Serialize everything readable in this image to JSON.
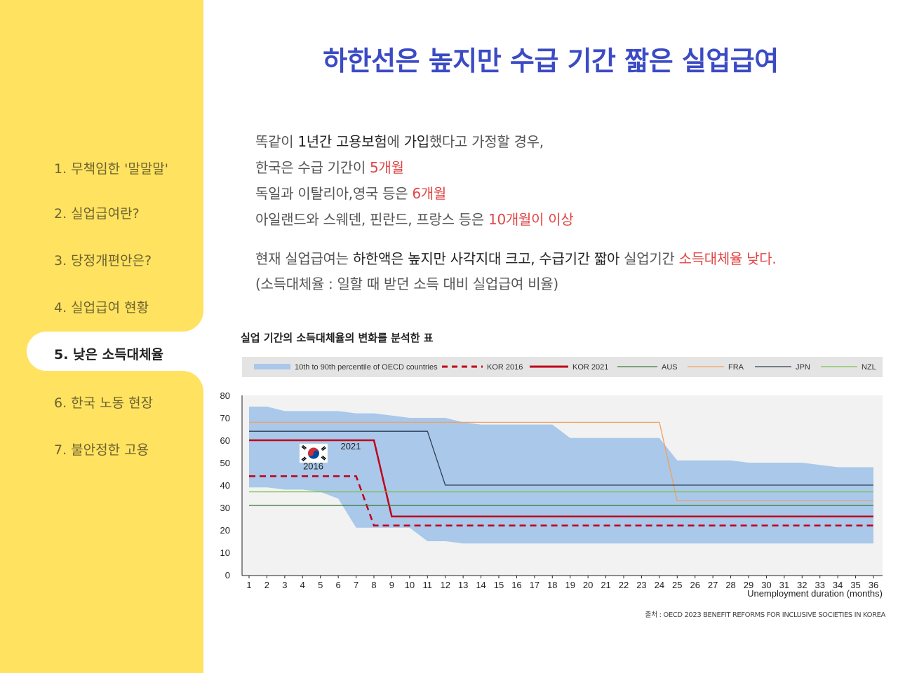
{
  "sidebar": {
    "items": [
      {
        "label": "1. 무책임한 '말말말'"
      },
      {
        "label": "2. 실업급여란?"
      },
      {
        "label": "3. 당정개편안은?"
      },
      {
        "label": "4. 실업급여 현황"
      },
      {
        "label": "5. 낮은 소득대체율"
      },
      {
        "label": "6. 한국 노동 현장"
      },
      {
        "label": "7. 불안정한 고용"
      }
    ],
    "active_index": 4
  },
  "page": {
    "title": "하한선은 높지만 수급 기간 짧은 실업급여",
    "para1": {
      "l1_a": "똑같이 ",
      "l1_b": "1년간 고용보험",
      "l1_c": "에 ",
      "l1_d": "가입",
      "l1_e": "했다고 가정할 경우,",
      "l2_a": "한국은 수급 기간이 ",
      "l2_b": "5개월",
      "l3_a": "독일과 이탈리아,영국 등은 ",
      "l3_b": "6개월",
      "l4_a": "아일랜드와 스웨덴, 핀란드, 프랑스 등은 ",
      "l4_b": "10개월이 이상"
    },
    "para2": {
      "l1_a": "현재 실업급여는 ",
      "l1_b": "하한액은 높지만 사각지대 크고, 수급기간 짧아",
      "l1_c": " 실업기간 ",
      "l1_d": "소득대체율 낮다.",
      "l2": "(소득대체율 : 일할 때 받던 소득 대비 실업급여 비율)"
    },
    "chart_title": "실업 기간의 소득대체율의 변화를 분석한 표",
    "source": "출처 : OECD 2023 BENEFIT REFORMS FOR INCLUSIVE SOCIETIES IN KOREA"
  },
  "chart_data": {
    "type": "line",
    "xlabel": "Unemployment duration (months)",
    "ylabel": "",
    "xlim": [
      1,
      36
    ],
    "ylim": [
      0,
      80
    ],
    "yticks": [
      0,
      10,
      20,
      30,
      40,
      50,
      60,
      70,
      80
    ],
    "legend_position": "top",
    "annotations": [
      {
        "text": "2021",
        "x": 6.7,
        "y": 56
      },
      {
        "text": "2016",
        "x": 4.6,
        "y": 47
      }
    ],
    "band": {
      "name": "10th to 90th percentile of OECD countries",
      "color": "#a9c8ea",
      "upper": [
        [
          1,
          75
        ],
        [
          2,
          75
        ],
        [
          3,
          73
        ],
        [
          4,
          73
        ],
        [
          5,
          73
        ],
        [
          6,
          73
        ],
        [
          7,
          72
        ],
        [
          8,
          72
        ],
        [
          9,
          71
        ],
        [
          10,
          70
        ],
        [
          11,
          70
        ],
        [
          12,
          70
        ],
        [
          13,
          68
        ],
        [
          14,
          67
        ],
        [
          15,
          67
        ],
        [
          16,
          67
        ],
        [
          17,
          67
        ],
        [
          18,
          67
        ],
        [
          19,
          61
        ],
        [
          20,
          61
        ],
        [
          21,
          61
        ],
        [
          22,
          61
        ],
        [
          23,
          61
        ],
        [
          24,
          61
        ],
        [
          25,
          51
        ],
        [
          26,
          51
        ],
        [
          27,
          51
        ],
        [
          28,
          51
        ],
        [
          29,
          50
        ],
        [
          30,
          50
        ],
        [
          31,
          50
        ],
        [
          32,
          50
        ],
        [
          33,
          49
        ],
        [
          34,
          48
        ],
        [
          35,
          48
        ],
        [
          36,
          48
        ]
      ],
      "lower": [
        [
          1,
          39
        ],
        [
          2,
          39
        ],
        [
          3,
          38
        ],
        [
          4,
          38
        ],
        [
          5,
          37
        ],
        [
          6,
          34
        ],
        [
          7,
          21
        ],
        [
          8,
          21
        ],
        [
          9,
          21
        ],
        [
          10,
          21
        ],
        [
          11,
          15
        ],
        [
          12,
          15
        ],
        [
          13,
          14
        ],
        [
          14,
          14
        ],
        [
          15,
          14
        ],
        [
          16,
          14
        ],
        [
          17,
          14
        ],
        [
          18,
          14
        ],
        [
          19,
          14
        ],
        [
          20,
          14
        ],
        [
          21,
          14
        ],
        [
          22,
          14
        ],
        [
          23,
          14
        ],
        [
          24,
          14
        ],
        [
          25,
          14
        ],
        [
          26,
          14
        ],
        [
          27,
          14
        ],
        [
          28,
          14
        ],
        [
          29,
          14
        ],
        [
          30,
          14
        ],
        [
          31,
          14
        ],
        [
          32,
          14
        ],
        [
          33,
          14
        ],
        [
          34,
          14
        ],
        [
          35,
          14
        ],
        [
          36,
          14
        ]
      ]
    },
    "series": [
      {
        "name": "KOR 2016",
        "color": "#c0001a",
        "dash": true,
        "width": 2.5,
        "points": [
          [
            1,
            44
          ],
          [
            7,
            44
          ],
          [
            8,
            22
          ],
          [
            36,
            22
          ]
        ]
      },
      {
        "name": "KOR 2021",
        "color": "#c0001a",
        "dash": false,
        "width": 2.5,
        "points": [
          [
            1,
            60
          ],
          [
            8,
            60
          ],
          [
            9,
            26
          ],
          [
            36,
            26
          ]
        ]
      },
      {
        "name": "AUS",
        "color": "#3d7a3d",
        "dash": false,
        "width": 1.3,
        "points": [
          [
            1,
            31
          ],
          [
            36,
            31
          ]
        ]
      },
      {
        "name": "FRA",
        "color": "#f0a060",
        "dash": false,
        "width": 1.3,
        "points": [
          [
            1,
            68
          ],
          [
            24,
            68
          ],
          [
            25,
            33
          ],
          [
            36,
            33
          ]
        ]
      },
      {
        "name": "JPN",
        "color": "#2e3f55",
        "dash": false,
        "width": 1.3,
        "points": [
          [
            1,
            64
          ],
          [
            11,
            64
          ],
          [
            12,
            40
          ],
          [
            36,
            40
          ]
        ]
      },
      {
        "name": "NZL",
        "color": "#7dc24a",
        "dash": false,
        "width": 1.3,
        "points": [
          [
            1,
            37
          ],
          [
            36,
            37
          ]
        ]
      }
    ]
  }
}
